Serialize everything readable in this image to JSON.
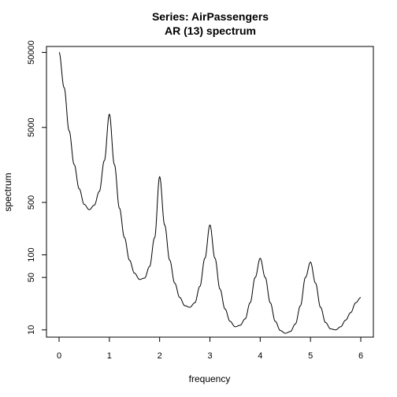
{
  "chart_data": {
    "type": "line",
    "title": "Series: AirPassengers",
    "subtitle": "AR (13) spectrum",
    "xlabel": "frequency",
    "ylabel": "spectrum",
    "xlim": [
      0,
      6
    ],
    "ylim": [
      8,
      60000
    ],
    "y_scale": "log",
    "grid": false,
    "x_ticks": [
      0,
      1,
      2,
      3,
      4,
      5,
      6
    ],
    "x_tick_labels": [
      "0",
      "1",
      "2",
      "3",
      "4",
      "5",
      "6"
    ],
    "y_ticks": [
      10,
      50,
      100,
      500,
      5000,
      50000
    ],
    "y_tick_labels": [
      "10",
      "50",
      "100",
      "500",
      "5000",
      "50000"
    ],
    "line_color": "#000000",
    "series": [
      {
        "x": [
          0.0,
          0.1,
          0.2,
          0.3,
          0.4,
          0.5,
          0.6,
          0.7,
          0.8,
          0.9,
          1.0,
          1.1,
          1.2,
          1.3,
          1.4,
          1.5,
          1.6,
          1.7,
          1.8,
          1.9,
          2.0,
          2.1,
          2.2,
          2.3,
          2.4,
          2.5,
          2.6,
          2.7,
          2.8,
          2.9,
          3.0,
          3.1,
          3.2,
          3.3,
          3.4,
          3.5,
          3.6,
          3.7,
          3.8,
          3.9,
          4.0,
          4.1,
          4.2,
          4.3,
          4.4,
          4.5,
          4.6,
          4.7,
          4.8,
          4.9,
          5.0,
          5.1,
          5.2,
          5.3,
          5.4,
          5.5,
          5.6,
          5.7,
          5.8,
          5.9,
          6.0
        ],
        "values": [
          50000,
          17000,
          4500,
          1600,
          760,
          470,
          400,
          460,
          700,
          1800,
          7500,
          1600,
          420,
          170,
          85,
          57,
          47,
          49,
          70,
          170,
          1100,
          250,
          85,
          42,
          27,
          21,
          20,
          23,
          38,
          90,
          250,
          90,
          35,
          19,
          13,
          11,
          11.5,
          14,
          23,
          50,
          90,
          50,
          23,
          13,
          9.8,
          9,
          9.5,
          12,
          21,
          50,
          80,
          42,
          20,
          12.5,
          10.3,
          10,
          11,
          13.5,
          17,
          23,
          27
        ]
      }
    ]
  }
}
